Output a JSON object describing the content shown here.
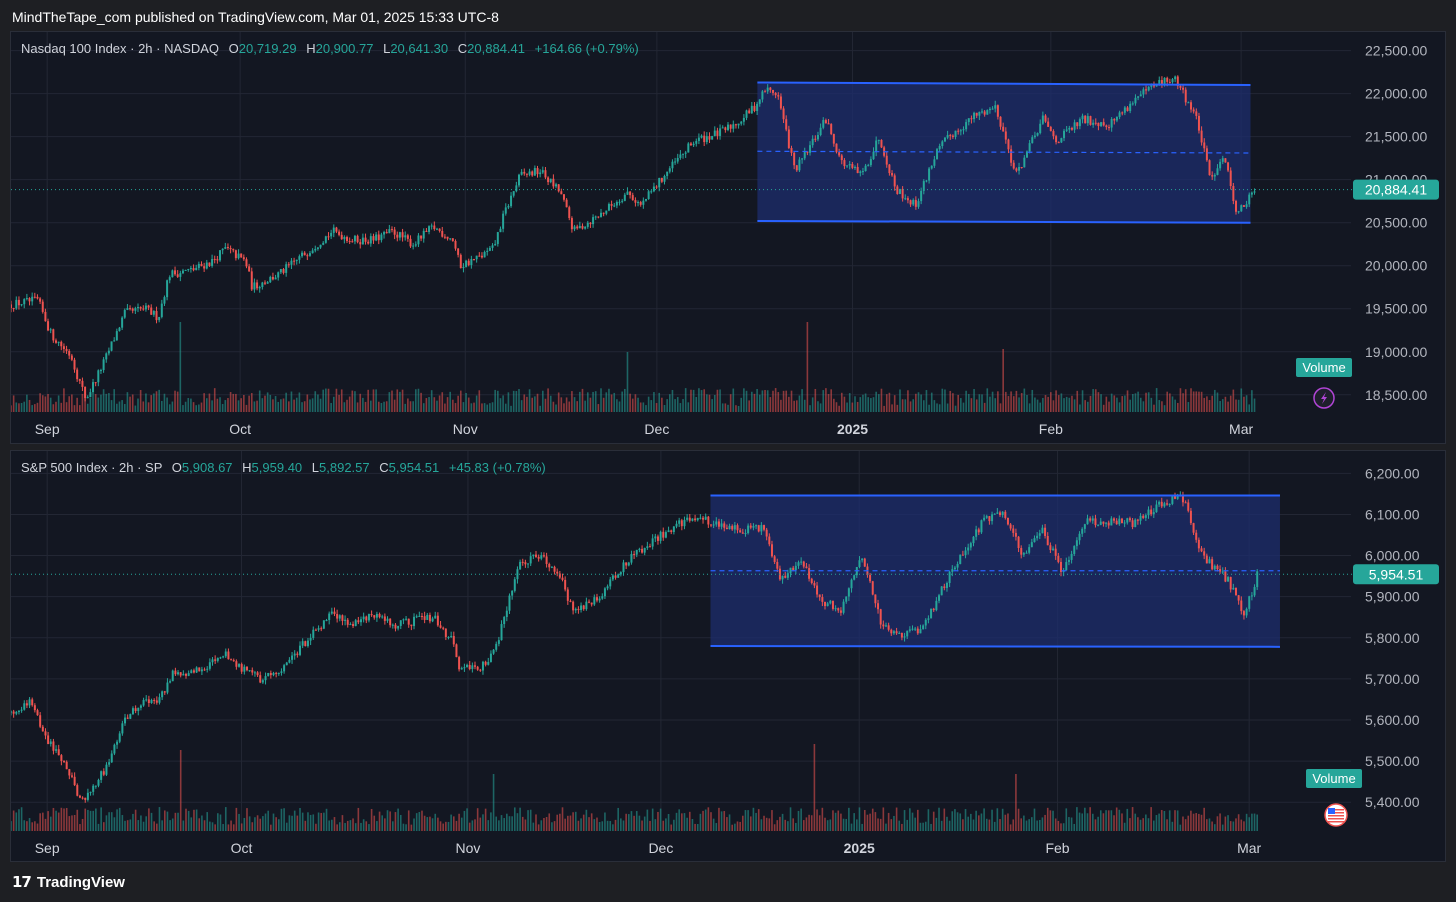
{
  "header": {
    "published_line": "MindTheTape_com published on TradingView.com, Mar 01, 2025 15:33 UTC-8"
  },
  "footer": {
    "brand": "TradingView",
    "logo_glyph": "𝟭𝟳"
  },
  "colors": {
    "up": "#26a69a",
    "down": "#ef5350",
    "channel_line": "#2962ff",
    "channel_fill": "#1e2e6e",
    "background": "#131722",
    "price_tag": "#26a69a"
  },
  "chart_data": [
    {
      "type": "candlestick",
      "title": "Nasdaq 100 Index · 2h · NASDAQ",
      "ohlc_label": {
        "o_key": "O",
        "o": "20,719.29",
        "h_key": "H",
        "h": "20,900.77",
        "l_key": "L",
        "l": "20,641.30",
        "c_key": "C",
        "c": "20,884.41",
        "change": "+164.66 (+0.79%)"
      },
      "last_price_tag": "20,884.41",
      "volume_label": "Volume",
      "badge_icon": "lightning-icon",
      "y_ticks": [
        "22,500.00",
        "22,000.00",
        "21,500.00",
        "21,000.00",
        "20,500.00",
        "20,000.00",
        "19,500.00",
        "19,000.00",
        "18,500.00"
      ],
      "ylim": [
        18300,
        22600
      ],
      "x_ticks": [
        {
          "label": "Sep",
          "frac": 0.027,
          "bold": false
        },
        {
          "label": "Oct",
          "frac": 0.171,
          "bold": false
        },
        {
          "label": "Nov",
          "frac": 0.339,
          "bold": false
        },
        {
          "label": "Dec",
          "frac": 0.482,
          "bold": false
        },
        {
          "label": "2025",
          "frac": 0.628,
          "bold": true
        },
        {
          "label": "Feb",
          "frac": 0.776,
          "bold": false
        },
        {
          "label": "Mar",
          "frac": 0.918,
          "bold": false
        }
      ],
      "close_path": [
        [
          0.0,
          19550
        ],
        [
          0.02,
          19600
        ],
        [
          0.03,
          19200
        ],
        [
          0.045,
          18950
        ],
        [
          0.05,
          18700
        ],
        [
          0.056,
          18450
        ],
        [
          0.07,
          18900
        ],
        [
          0.085,
          19450
        ],
        [
          0.1,
          19500
        ],
        [
          0.11,
          19400
        ],
        [
          0.118,
          19900
        ],
        [
          0.135,
          19950
        ],
        [
          0.15,
          20050
        ],
        [
          0.16,
          20200
        ],
        [
          0.175,
          20050
        ],
        [
          0.18,
          19750
        ],
        [
          0.2,
          19900
        ],
        [
          0.22,
          20150
        ],
        [
          0.24,
          20400
        ],
        [
          0.255,
          20300
        ],
        [
          0.27,
          20300
        ],
        [
          0.285,
          20400
        ],
        [
          0.3,
          20250
        ],
        [
          0.315,
          20450
        ],
        [
          0.33,
          20300
        ],
        [
          0.335,
          20000
        ],
        [
          0.35,
          20100
        ],
        [
          0.36,
          20200
        ],
        [
          0.368,
          20600
        ],
        [
          0.38,
          21050
        ],
        [
          0.395,
          21100
        ],
        [
          0.41,
          20850
        ],
        [
          0.42,
          20400
        ],
        [
          0.44,
          20600
        ],
        [
          0.46,
          20850
        ],
        [
          0.47,
          20700
        ],
        [
          0.49,
          21100
        ],
        [
          0.51,
          21450
        ],
        [
          0.53,
          21550
        ],
        [
          0.545,
          21700
        ],
        [
          0.555,
          21850
        ],
        [
          0.563,
          22050
        ],
        [
          0.572,
          22000
        ],
        [
          0.585,
          21100
        ],
        [
          0.595,
          21350
        ],
        [
          0.608,
          21700
        ],
        [
          0.62,
          21200
        ],
        [
          0.635,
          21050
        ],
        [
          0.648,
          21500
        ],
        [
          0.66,
          20900
        ],
        [
          0.675,
          20700
        ],
        [
          0.69,
          21300
        ],
        [
          0.7,
          21500
        ],
        [
          0.72,
          21750
        ],
        [
          0.735,
          21850
        ],
        [
          0.75,
          21050
        ],
        [
          0.77,
          21700
        ],
        [
          0.78,
          21450
        ],
        [
          0.8,
          21700
        ],
        [
          0.82,
          21650
        ],
        [
          0.84,
          21950
        ],
        [
          0.86,
          22150
        ],
        [
          0.87,
          22150
        ],
        [
          0.885,
          21700
        ],
        [
          0.895,
          21000
        ],
        [
          0.905,
          21300
        ],
        [
          0.915,
          20600
        ],
        [
          0.925,
          20800
        ],
        [
          0.928,
          20884
        ]
      ],
      "channel": {
        "x0_frac": 0.557,
        "x1_frac": 0.925,
        "top": [
          22130,
          22100
        ],
        "bottom": [
          20520,
          20500
        ],
        "mid": [
          21330,
          21310
        ]
      },
      "volume_spikes": [
        [
          0.126,
          1.0
        ],
        [
          0.594,
          1.0
        ],
        [
          0.46,
          0.5
        ],
        [
          0.74,
          0.55
        ]
      ]
    },
    {
      "type": "candlestick",
      "title": "S&P 500 Index · 2h · SP",
      "ohlc_label": {
        "o_key": "O",
        "o": "5,908.67",
        "h_key": "H",
        "h": "5,959.40",
        "l_key": "L",
        "l": "5,892.57",
        "c_key": "C",
        "c": "5,954.51",
        "change": "+45.83 (+0.78%)"
      },
      "last_price_tag": "5,954.51",
      "volume_label": "Volume",
      "badge_icon": "us-flag-icon",
      "y_ticks": [
        "6,200.00",
        "6,100.00",
        "6,000.00",
        "5,900.00",
        "5,800.00",
        "5,700.00",
        "5,600.00",
        "5,500.00",
        "5,400.00"
      ],
      "ylim": [
        5330,
        6230
      ],
      "x_ticks": [
        {
          "label": "Sep",
          "frac": 0.027,
          "bold": false
        },
        {
          "label": "Oct",
          "frac": 0.172,
          "bold": false
        },
        {
          "label": "Nov",
          "frac": 0.341,
          "bold": false
        },
        {
          "label": "Dec",
          "frac": 0.485,
          "bold": false
        },
        {
          "label": "2025",
          "frac": 0.633,
          "bold": true
        },
        {
          "label": "Feb",
          "frac": 0.781,
          "bold": false
        },
        {
          "label": "Mar",
          "frac": 0.924,
          "bold": false
        }
      ],
      "close_path": [
        [
          0.0,
          5620
        ],
        [
          0.015,
          5650
        ],
        [
          0.025,
          5560
        ],
        [
          0.04,
          5500
        ],
        [
          0.05,
          5420
        ],
        [
          0.056,
          5410
        ],
        [
          0.07,
          5480
        ],
        [
          0.085,
          5600
        ],
        [
          0.1,
          5650
        ],
        [
          0.11,
          5640
        ],
        [
          0.12,
          5710
        ],
        [
          0.135,
          5720
        ],
        [
          0.15,
          5740
        ],
        [
          0.16,
          5760
        ],
        [
          0.175,
          5720
        ],
        [
          0.185,
          5700
        ],
        [
          0.2,
          5720
        ],
        [
          0.22,
          5790
        ],
        [
          0.24,
          5860
        ],
        [
          0.255,
          5830
        ],
        [
          0.27,
          5860
        ],
        [
          0.285,
          5830
        ],
        [
          0.3,
          5840
        ],
        [
          0.315,
          5850
        ],
        [
          0.33,
          5790
        ],
        [
          0.335,
          5720
        ],
        [
          0.35,
          5730
        ],
        [
          0.36,
          5760
        ],
        [
          0.37,
          5870
        ],
        [
          0.38,
          5980
        ],
        [
          0.395,
          6000
        ],
        [
          0.41,
          5950
        ],
        [
          0.42,
          5860
        ],
        [
          0.44,
          5900
        ],
        [
          0.46,
          5990
        ],
        [
          0.48,
          6040
        ],
        [
          0.5,
          6080
        ],
        [
          0.515,
          6090
        ],
        [
          0.53,
          6070
        ],
        [
          0.545,
          6060
        ],
        [
          0.56,
          6070
        ],
        [
          0.575,
          5940
        ],
        [
          0.59,
          5990
        ],
        [
          0.605,
          5890
        ],
        [
          0.62,
          5870
        ],
        [
          0.635,
          6000
        ],
        [
          0.65,
          5830
        ],
        [
          0.665,
          5810
        ],
        [
          0.68,
          5820
        ],
        [
          0.695,
          5920
        ],
        [
          0.71,
          6010
        ],
        [
          0.725,
          6080
        ],
        [
          0.74,
          6110
        ],
        [
          0.755,
          6000
        ],
        [
          0.77,
          6060
        ],
        [
          0.785,
          5960
        ],
        [
          0.8,
          6080
        ],
        [
          0.82,
          6080
        ],
        [
          0.84,
          6080
        ],
        [
          0.86,
          6130
        ],
        [
          0.875,
          6140
        ],
        [
          0.89,
          5990
        ],
        [
          0.9,
          5970
        ],
        [
          0.91,
          5930
        ],
        [
          0.92,
          5850
        ],
        [
          0.93,
          5954
        ]
      ],
      "channel": {
        "x0_frac": 0.522,
        "x1_frac": 0.947,
        "top": [
          6146,
          6146
        ],
        "bottom": [
          5780,
          5778
        ],
        "mid": [
          5963,
          5963
        ]
      },
      "volume_spikes": [
        [
          0.126,
          0.85
        ],
        [
          0.6,
          0.95
        ],
        [
          0.36,
          0.45
        ],
        [
          0.75,
          0.45
        ]
      ]
    }
  ]
}
